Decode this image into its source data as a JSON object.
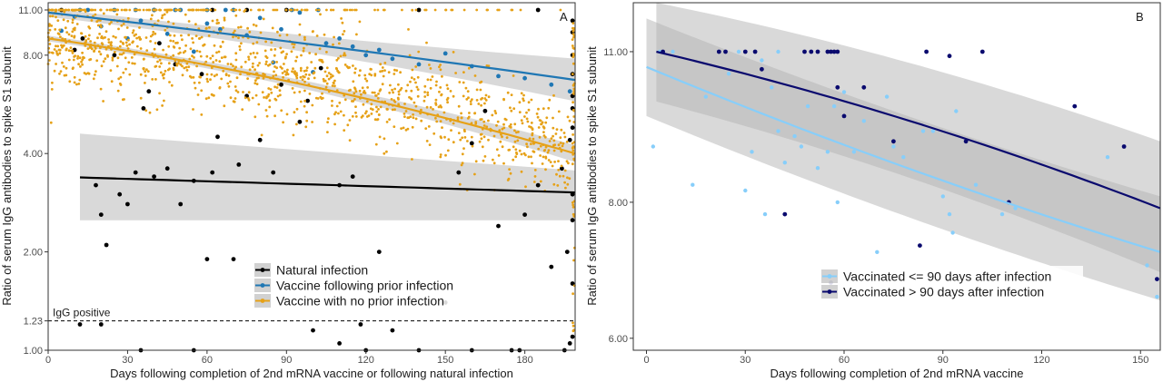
{
  "chart_data": [
    {
      "type": "scatter",
      "panel_label": "A",
      "xlabel": "Days following completion of 2nd mRNA vaccine or following natural infection",
      "ylabel": "Ratio of serum IgG antibodies to spike S1 subunit",
      "x_ticks": [
        0,
        30,
        60,
        90,
        120,
        150,
        180
      ],
      "y_ticks": [
        {
          "value": 1.0,
          "label": "1.00"
        },
        {
          "value": 1.23,
          "label": "1.23"
        },
        {
          "value": 2.0,
          "label": "2.00"
        },
        {
          "value": 4.0,
          "label": "4.00"
        },
        {
          "value": 8.0,
          "label": "8.00"
        },
        {
          "value": 11.0,
          "label": "11.00"
        }
      ],
      "y_scale": "log",
      "xlim": [
        0,
        199
      ],
      "ylim": [
        1.0,
        11.0
      ],
      "grid": false,
      "legend_position": "bottom-center",
      "reference_line": {
        "y": 1.23,
        "label": "IgG positive",
        "style": "dashed"
      },
      "series": [
        {
          "name": "Natural infection",
          "color": "#000000",
          "marker_size": 2.4,
          "points": [
            [
              10,
              8.3
            ],
            [
              13,
              9.0
            ],
            [
              18,
              3.2
            ],
            [
              20,
              2.6
            ],
            [
              22,
              2.1
            ],
            [
              25,
              8.0
            ],
            [
              27,
              3.0
            ],
            [
              30,
              2.8
            ],
            [
              33,
              3.5
            ],
            [
              36,
              5.5
            ],
            [
              38,
              6.2
            ],
            [
              40,
              3.4
            ],
            [
              42,
              8.7
            ],
            [
              45,
              3.6
            ],
            [
              48,
              7.5
            ],
            [
              50,
              2.8
            ],
            [
              55,
              3.3
            ],
            [
              58,
              7.0
            ],
            [
              60,
              1.9
            ],
            [
              62,
              3.5
            ],
            [
              64,
              4.5
            ],
            [
              70,
              1.9
            ],
            [
              72,
              3.7
            ],
            [
              75,
              6.0
            ],
            [
              80,
              4.4
            ],
            [
              85,
              3.5
            ],
            [
              88,
              6.5
            ],
            [
              95,
              5.0
            ],
            [
              98,
              5.8
            ],
            [
              103,
              7.3
            ],
            [
              108,
              1.6
            ],
            [
              110,
              3.2
            ],
            [
              115,
              3.4
            ],
            [
              118,
              1.2
            ],
            [
              125,
              2.0
            ],
            [
              130,
              1.15
            ],
            [
              140,
              1.6
            ],
            [
              150,
              1.4
            ],
            [
              155,
              3.5
            ],
            [
              160,
              4.3
            ],
            [
              165,
              5.4
            ],
            [
              170,
              2.4
            ],
            [
              175,
              1.0
            ],
            [
              180,
              2.6
            ],
            [
              185,
              3.2
            ],
            [
              190,
              1.8
            ],
            [
              194,
              3.6
            ],
            [
              196,
              2.0
            ],
            [
              197,
              4.4
            ],
            [
              198,
              9.4
            ],
            [
              12,
              1.2
            ],
            [
              20,
              1.2
            ],
            [
              35,
              1.0
            ],
            [
              55,
              1.0
            ],
            [
              100,
              1.15
            ],
            [
              110,
              1.05
            ],
            [
              120,
              1.0
            ],
            [
              140,
              1.0
            ],
            [
              160,
              1.0
            ],
            [
              178,
              1.0
            ],
            [
              195,
              1.0
            ],
            [
              197,
              1.05
            ],
            [
              198,
              1.1
            ],
            [
              198,
              1.6
            ],
            [
              198,
              2.5
            ],
            [
              198,
              3.0
            ],
            [
              198,
              4.8
            ],
            [
              198,
              5.5
            ],
            [
              198,
              6.0
            ],
            [
              198,
              7.0
            ],
            [
              198,
              8.0
            ],
            [
              198,
              10.2
            ],
            [
              5,
              11.0
            ],
            [
              40,
              11.0
            ],
            [
              62,
              11.0
            ],
            [
              75,
              11.0
            ],
            [
              90,
              11.0
            ],
            [
              140,
              11.0
            ],
            [
              185,
              11.0
            ]
          ]
        },
        {
          "name": "Vaccine following prior infection",
          "color": "#1f77b4",
          "marker_size": 2.4,
          "points": [
            [
              5,
              9.5
            ],
            [
              10,
              10.5
            ],
            [
              15,
              11.0
            ],
            [
              20,
              9.8
            ],
            [
              25,
              11.0
            ],
            [
              30,
              9.0
            ],
            [
              35,
              10.2
            ],
            [
              40,
              11.0
            ],
            [
              45,
              9.3
            ],
            [
              50,
              11.0
            ],
            [
              55,
              8.2
            ],
            [
              60,
              10.0
            ],
            [
              65,
              9.6
            ],
            [
              70,
              11.0
            ],
            [
              75,
              9.2
            ],
            [
              80,
              10.4
            ],
            [
              85,
              7.6
            ],
            [
              88,
              9.6
            ],
            [
              92,
              11.0
            ],
            [
              95,
              10.8
            ],
            [
              100,
              7.1
            ],
            [
              105,
              8.7
            ],
            [
              110,
              9.0
            ],
            [
              115,
              8.5
            ],
            [
              120,
              8.0
            ],
            [
              125,
              8.3
            ],
            [
              130,
              7.8
            ],
            [
              140,
              7.5
            ],
            [
              150,
              8.1
            ],
            [
              160,
              7.4
            ],
            [
              170,
              6.9
            ],
            [
              180,
              6.8
            ],
            [
              190,
              6.5
            ],
            [
              197,
              6.2
            ],
            [
              33,
              11.0
            ],
            [
              48,
              11.0
            ],
            [
              60,
              11.0
            ],
            [
              67,
              11.0
            ],
            [
              102,
              11.0
            ],
            [
              12,
              11.0
            ]
          ]
        },
        {
          "name": "Vaccine with no prior infection",
          "color": "#e6a117",
          "marker_size": 1.4,
          "points": []
        }
      ],
      "fit_lines": [
        {
          "name": "Natural infection",
          "color": "#000000",
          "x": [
            12,
            199
          ],
          "y": [
            3.38,
            3.04
          ],
          "ci_lower": [
            2.5,
            2.5
          ],
          "ci_upper": [
            4.6,
            3.55
          ],
          "ci_start": 12
        },
        {
          "name": "Vaccine following prior infection",
          "color": "#1f77b4",
          "x": [
            0,
            199
          ],
          "y": [
            10.8,
            6.72
          ],
          "ci_start": 0
        },
        {
          "name": "Vaccine with no prior infection",
          "color": "#e6a117",
          "x": [
            0,
            199
          ],
          "y": [
            9.0,
            4.0
          ],
          "ci_start": 0
        }
      ]
    },
    {
      "type": "scatter",
      "panel_label": "B",
      "xlabel": "Days following completion of 2nd mRNA vaccine",
      "ylabel": "Ratio of serum IgG antibodies to spike S1 subunit",
      "x_ticks": [
        0,
        30,
        60,
        90,
        120,
        150
      ],
      "y_ticks": [
        {
          "value": 6.0,
          "label": "6.00"
        },
        {
          "value": 8.0,
          "label": "8.00"
        },
        {
          "value": 11.0,
          "label": "11.00"
        }
      ],
      "y_scale": "log",
      "xlim": [
        -4,
        156
      ],
      "ylim": [
        5.85,
        12.2
      ],
      "grid": false,
      "legend_position": "bottom-center",
      "series": [
        {
          "name": "Vaccinated <= 90 days after infection",
          "color": "#87cefa",
          "marker_size": 2.2,
          "points": [
            [
              2,
              9.0
            ],
            [
              4,
              11.0
            ],
            [
              8,
              11.0
            ],
            [
              14,
              8.3
            ],
            [
              18,
              10.0
            ],
            [
              22,
              11.0
            ],
            [
              25,
              10.5
            ],
            [
              28,
              11.0
            ],
            [
              30,
              8.2
            ],
            [
              32,
              8.9
            ],
            [
              35,
              10.8
            ],
            [
              36,
              7.8
            ],
            [
              38,
              10.2
            ],
            [
              40,
              9.3
            ],
            [
              42,
              8.7
            ],
            [
              45,
              9.2
            ],
            [
              47,
              9.0
            ],
            [
              49,
              9.8
            ],
            [
              52,
              8.6
            ],
            [
              55,
              8.9
            ],
            [
              57,
              9.8
            ],
            [
              58,
              8.0
            ],
            [
              60,
              10.1
            ],
            [
              63,
              8.9
            ],
            [
              66,
              9.5
            ],
            [
              70,
              7.2
            ],
            [
              73,
              10.0
            ],
            [
              75,
              9.0
            ],
            [
              78,
              8.8
            ],
            [
              84,
              9.3
            ],
            [
              87,
              9.3
            ],
            [
              90,
              8.1
            ],
            [
              92,
              7.8
            ],
            [
              93,
              7.5
            ],
            [
              94,
              9.7
            ],
            [
              100,
              8.3
            ],
            [
              108,
              7.8
            ],
            [
              112,
              7.9
            ],
            [
              140,
              8.8
            ],
            [
              152,
              7.0
            ],
            [
              155,
              6.55
            ],
            [
              33,
              11.0
            ],
            [
              40,
              11.0
            ]
          ]
        },
        {
          "name": "Vaccinated > 90 days after infection",
          "color": "#0a0a6e",
          "marker_size": 2.4,
          "points": [
            [
              5,
              11.0
            ],
            [
              22,
              11.0
            ],
            [
              24,
              11.0
            ],
            [
              30,
              11.0
            ],
            [
              33,
              11.0
            ],
            [
              35,
              10.6
            ],
            [
              42,
              7.8
            ],
            [
              48,
              11.0
            ],
            [
              50,
              11.0
            ],
            [
              52,
              11.0
            ],
            [
              55,
              11.0
            ],
            [
              56,
              11.0
            ],
            [
              57,
              11.0
            ],
            [
              58,
              11.0
            ],
            [
              58,
              10.2
            ],
            [
              60,
              9.6
            ],
            [
              56,
              6.75
            ],
            [
              66,
              10.2
            ],
            [
              75,
              9.1
            ],
            [
              83,
              7.3
            ],
            [
              85,
              11.0
            ],
            [
              92,
              10.9
            ],
            [
              97,
              9.1
            ],
            [
              102,
              11.0
            ],
            [
              110,
              8.0
            ],
            [
              130,
              9.8
            ],
            [
              145,
              9.0
            ],
            [
              155,
              6.8
            ]
          ]
        }
      ],
      "fit_lines": [
        {
          "name": "Vaccinated <= 90 days after infection",
          "color": "#87cefa",
          "x": [
            0,
            156
          ],
          "y": [
            10.65,
            7.2
          ],
          "ci_lower": [
            9.6,
            6.5
          ],
          "ci_upper": [
            11.8,
            8.1
          ],
          "ci_start": 0
        },
        {
          "name": "Vaccinated > 90 days after infection",
          "color": "#0a0a6e",
          "x": [
            3,
            156
          ],
          "y": [
            11.0,
            7.9
          ],
          "ci_lower": [
            9.9,
            6.9
          ],
          "ci_upper": [
            12.2,
            9.1
          ],
          "ci_start": 3
        }
      ]
    }
  ]
}
